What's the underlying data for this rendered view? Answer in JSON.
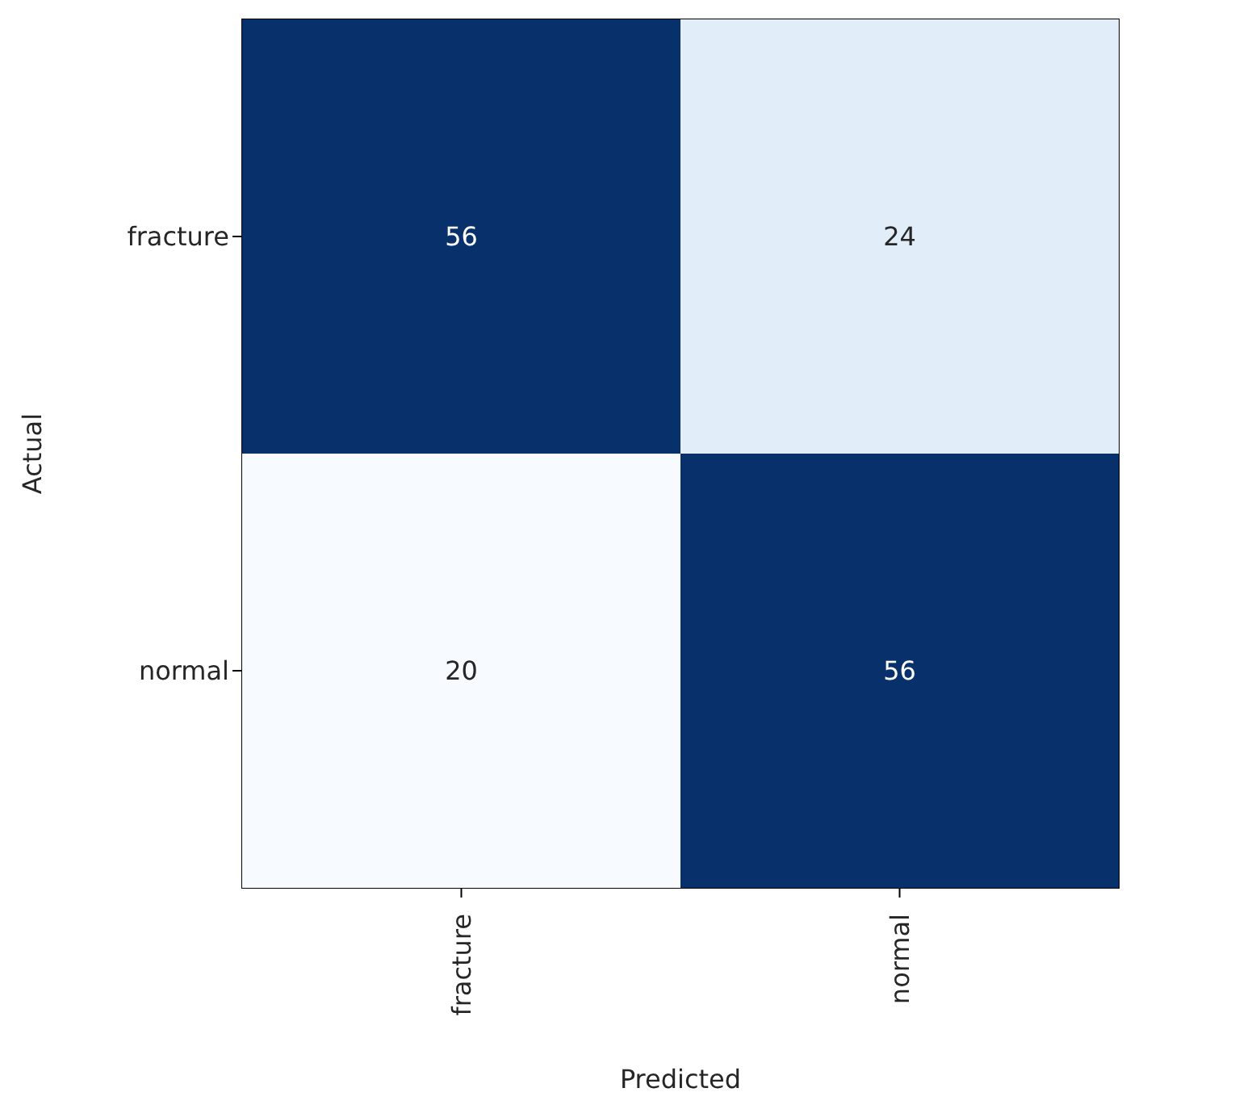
{
  "chart_data": {
    "type": "heatmap",
    "xlabel": "Predicted",
    "ylabel": "Actual",
    "data_labels": true,
    "categories": [
      "fracture",
      "normal"
    ],
    "y_categories": [
      "fracture",
      "normal"
    ],
    "cells": [
      [
        56,
        24
      ],
      [
        20,
        56
      ]
    ]
  }
}
